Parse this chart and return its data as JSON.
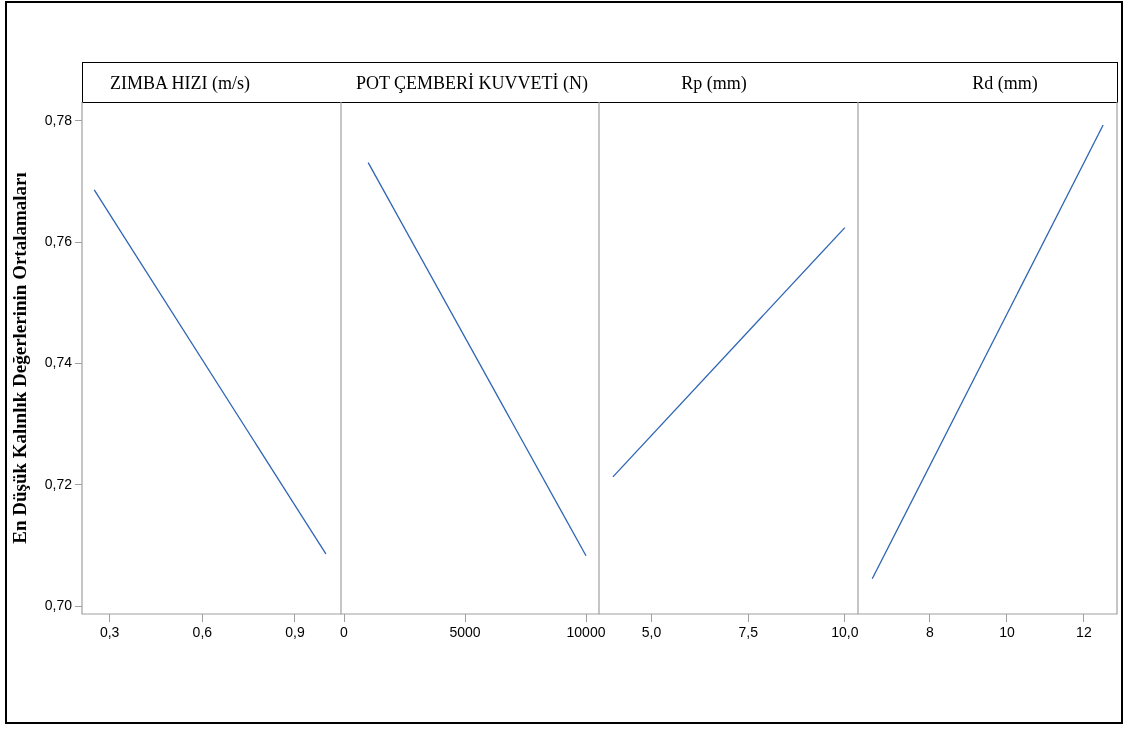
{
  "chart_data": [
    {
      "type": "line",
      "title": "ZIMBA HIZI (m/s)",
      "ylabel": "En Düşük Kalınlık Değerlerinin Ortalamaları",
      "x": [
        0.25,
        1.0
      ],
      "values": [
        0.7686,
        0.7086
      ],
      "color": "#2e64b4",
      "xlim": [
        0.2104,
        1.049
      ],
      "xticks": [
        {
          "value": 0.3,
          "label": "0,3"
        },
        {
          "value": 0.6,
          "label": "0,6"
        },
        {
          "value": 0.9,
          "label": "0,9"
        }
      ],
      "ylim": [
        0.6987,
        0.7831
      ],
      "yticks": [
        {
          "value": 0.7,
          "label": "0,70"
        },
        {
          "value": 0.72,
          "label": "0,72"
        },
        {
          "value": 0.74,
          "label": "0,74"
        },
        {
          "value": 0.76,
          "label": "0,76"
        },
        {
          "value": 0.78,
          "label": "0,78"
        }
      ],
      "grid": false
    },
    {
      "type": "line",
      "title": "POT ÇEMBERİ KUVVETİ (N)",
      "x": [
        1000,
        10000
      ],
      "values": [
        0.7731,
        0.7083
      ],
      "color": "#2e64b4",
      "xlim": [
        -124,
        10537
      ],
      "xticks": [
        0,
        5000,
        10000
      ],
      "ylim": [
        0.6987,
        0.7831
      ],
      "tick_labels": "x",
      "grid": false
    },
    {
      "type": "line",
      "title": "Rp (mm)",
      "x": [
        4,
        10
      ],
      "values": [
        0.7213,
        0.7624
      ],
      "color": "#2e64b4",
      "xlim": [
        3.64,
        10.34
      ],
      "xticks": [
        {
          "value": 5,
          "label": "5,0"
        },
        {
          "value": 7.5,
          "label": "7,5"
        },
        {
          "value": 10,
          "label": "10,0"
        }
      ],
      "ylim": [
        0.6987,
        0.7831
      ],
      "tick_labels": "x",
      "grid": false
    },
    {
      "type": "line",
      "title": "Rd (mm)",
      "x": [
        6.5,
        12.5
      ],
      "values": [
        0.7045,
        0.7793
      ],
      "color": "#2e64b4",
      "xlim": [
        6.13,
        12.86
      ],
      "xticks": [
        8,
        10,
        12
      ],
      "ylim": [
        0.6987,
        0.7831
      ],
      "tick_labels": "x",
      "grid": false
    }
  ]
}
